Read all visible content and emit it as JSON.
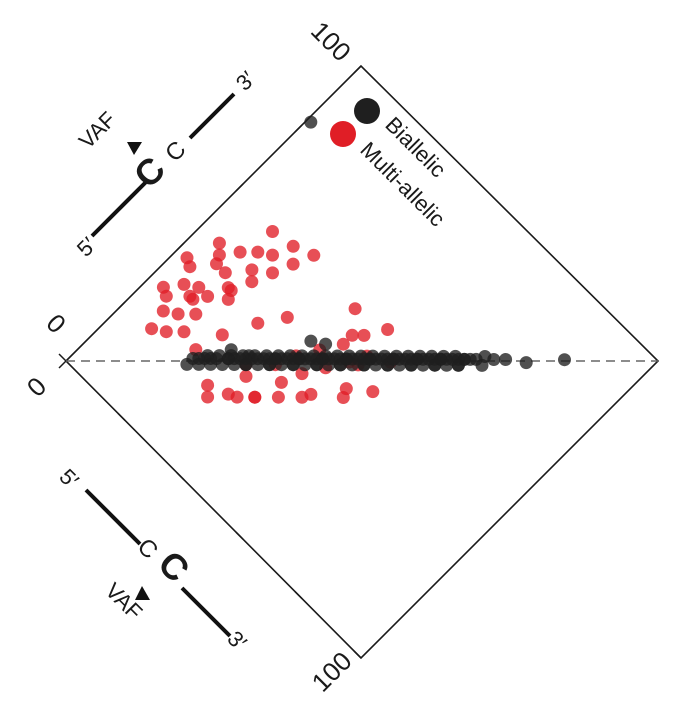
{
  "chart_data": {
    "type": "scatter",
    "title": "",
    "axes": {
      "top_left_axis": {
        "range": [
          0,
          100
        ],
        "tick_labels": [
          "0",
          "100"
        ]
      },
      "bottom_left_axis": {
        "range": [
          0,
          100
        ],
        "tick_labels": [
          "0",
          "100"
        ]
      }
    },
    "axis_annotations": {
      "upper": {
        "strand_5": "5′",
        "strand_3": "3′",
        "base_bold": "C",
        "base": "C",
        "marker": "VAF"
      },
      "lower": {
        "strand_5": "5′",
        "strand_3": "3′",
        "base_bold": "C",
        "base": "C",
        "marker": "VAF"
      }
    },
    "reference_line": "dashed diagonal",
    "legend": {
      "placement": "top-right",
      "entries": [
        "Biallelic",
        "Multi-allelic"
      ]
    },
    "colors": {
      "Biallelic": "#1f1f1f",
      "Multi-allelic": "#e01e26"
    },
    "series": [
      {
        "name": "Biallelic",
        "x": [
          23,
          24,
          25,
          26,
          22,
          28,
          30,
          29,
          32,
          31,
          34,
          33,
          36,
          35,
          38,
          37,
          40,
          39,
          42,
          41,
          44,
          43,
          46,
          45,
          48,
          47,
          50,
          49,
          52,
          51,
          54,
          53,
          56,
          55,
          58,
          57,
          60,
          59,
          62,
          61,
          64,
          63,
          66,
          65,
          68,
          67,
          70,
          69,
          20,
          22,
          24,
          26,
          28,
          30,
          32,
          34,
          36,
          38,
          40,
          42,
          44,
          46,
          48,
          50,
          52,
          54,
          56,
          58,
          60,
          62,
          64,
          66,
          25,
          27,
          29,
          31,
          33,
          35,
          37,
          39,
          41,
          43,
          45,
          47,
          49,
          51,
          53,
          55,
          57,
          59,
          61,
          63,
          65,
          67,
          30,
          34,
          38,
          42,
          46,
          50,
          54,
          58,
          62,
          66,
          70,
          28,
          32,
          36,
          40,
          44,
          48,
          52,
          56,
          60,
          64,
          68,
          72,
          73,
          75,
          78,
          85,
          82,
          45,
          30,
          47
        ],
        "y": [
          22,
          23,
          24,
          25,
          21,
          27,
          29,
          28,
          30,
          30,
          33,
          32,
          35,
          34,
          37,
          36,
          39,
          38,
          41,
          40,
          43,
          42,
          45,
          44,
          47,
          46,
          49,
          48,
          51,
          50,
          53,
          52,
          55,
          54,
          57,
          56,
          59,
          58,
          61,
          60,
          63,
          62,
          65,
          64,
          67,
          66,
          69,
          68,
          21,
          23,
          25,
          27,
          29,
          31,
          33,
          35,
          37,
          39,
          41,
          43,
          45,
          47,
          49,
          51,
          53,
          55,
          57,
          59,
          61,
          63,
          65,
          67,
          23,
          25,
          27,
          29,
          31,
          33,
          35,
          37,
          39,
          41,
          43,
          45,
          47,
          49,
          51,
          53,
          55,
          57,
          59,
          61,
          63,
          65,
          31,
          35,
          39,
          43,
          47,
          51,
          55,
          59,
          63,
          67,
          71,
          27,
          31,
          35,
          39,
          43,
          47,
          51,
          55,
          59,
          63,
          67,
          70,
          72,
          74,
          78,
          84,
          1,
          38,
          26,
          41
        ]
      },
      {
        "name": "Multi-allelic",
        "x": [
          18,
          20,
          23,
          26,
          28,
          30,
          33,
          35,
          38,
          40,
          43,
          45,
          48,
          50,
          52,
          55,
          20,
          22,
          25,
          27,
          30,
          32,
          35,
          38,
          40,
          42,
          45,
          47,
          50,
          53,
          55,
          58,
          60,
          28,
          33,
          37,
          42,
          48,
          25,
          24,
          29,
          35,
          44,
          51,
          57,
          38,
          46,
          32,
          40,
          26,
          36,
          43,
          49,
          55,
          60,
          22,
          30,
          34,
          41,
          47,
          53,
          58,
          31,
          39,
          45
        ],
        "y": [
          30,
          28,
          35,
          38,
          33,
          31,
          40,
          36,
          42,
          38,
          45,
          41,
          48,
          44,
          50,
          46,
          9,
          12,
          8,
          11,
          14,
          10,
          13,
          17,
          15,
          12,
          18,
          16,
          20,
          17,
          22,
          19,
          24,
          6,
          7,
          5,
          9,
          11,
          15,
          20,
          4,
          10,
          8,
          14,
          13,
          3,
          6,
          11,
          16,
          38,
          47,
          52,
          50,
          55,
          49,
          33,
          42,
          46,
          53,
          57,
          44,
          40,
          22,
          26,
          30
        ]
      }
    ]
  }
}
